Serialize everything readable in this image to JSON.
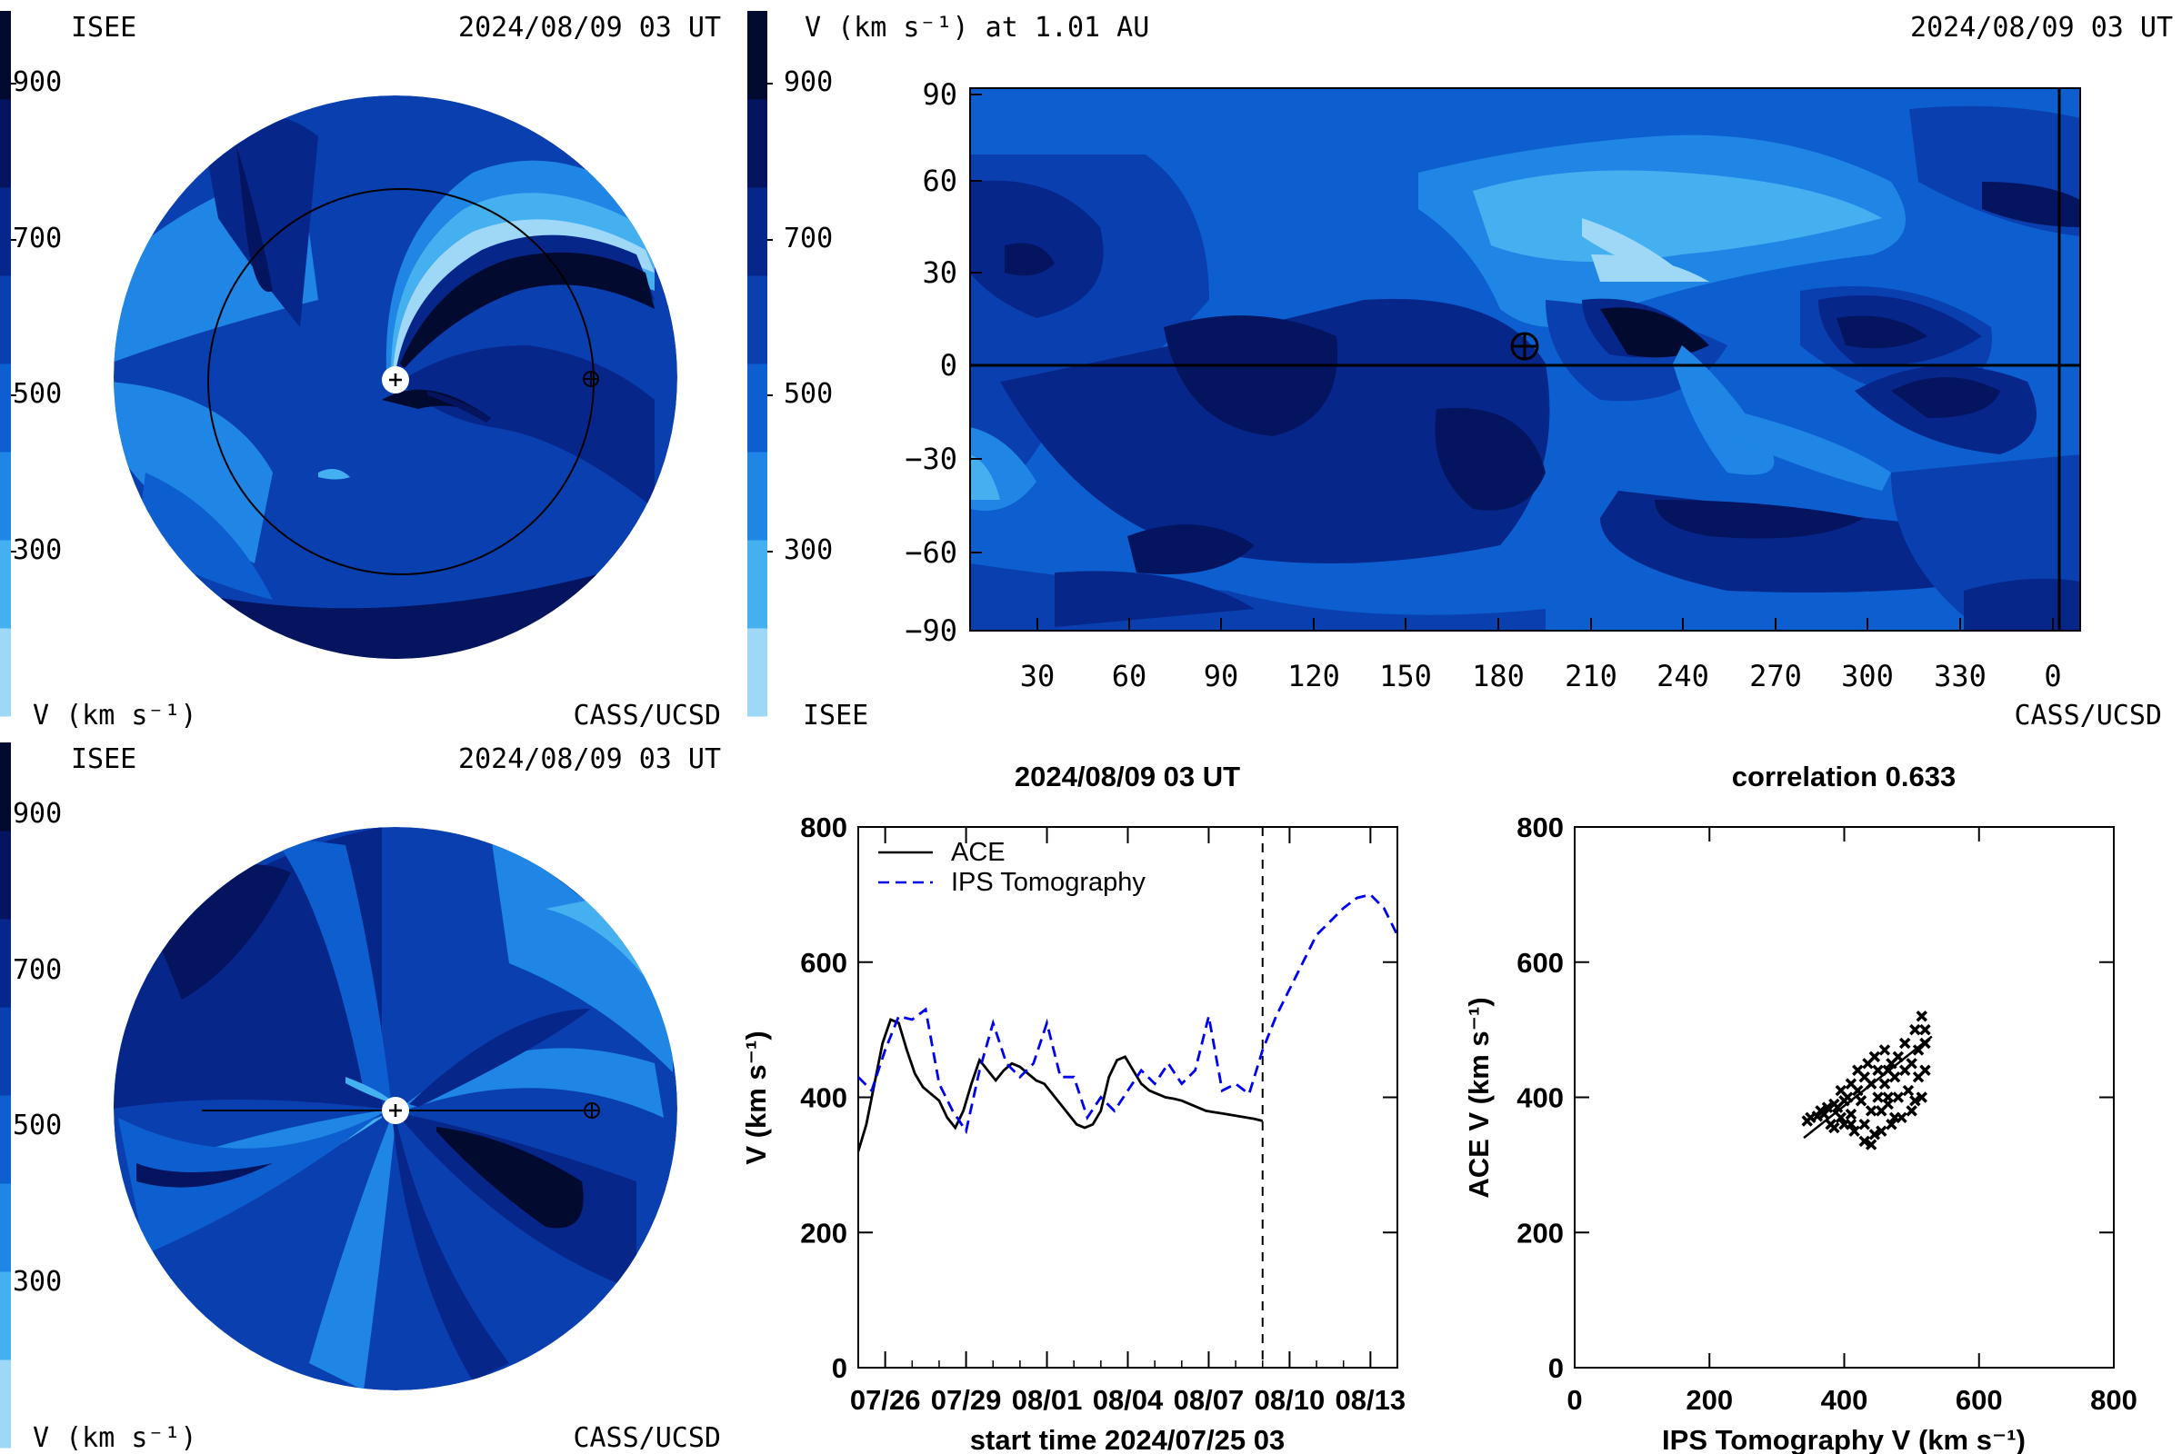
{
  "colorbar_levels": [
    "#9fd8f7",
    "#44b0f0",
    "#1f86e6",
    "#0d5fd0",
    "#0a3fb0",
    "#07268a",
    "#05145e",
    "#020a30"
  ],
  "tl": {
    "org_left": "ISEE",
    "time": "2024/08/09 03 UT",
    "org_right": "CASS/UCSD",
    "cbar_ticks": [
      "900",
      "700",
      "500",
      "300"
    ],
    "cbar_unit": "V (km s⁻¹)"
  },
  "bl": {
    "org_left": "ISEE",
    "time": "2024/08/09 03 UT",
    "org_right": "CASS/UCSD",
    "cbar_ticks": [
      "900",
      "700",
      "500",
      "300"
    ],
    "cbar_unit": "V (km s⁻¹)"
  },
  "tr": {
    "title": "V (km s⁻¹) at 1.01 AU",
    "time": "2024/08/09 03 UT",
    "org_left": "ISEE",
    "org_right": "CASS/UCSD",
    "cbar_ticks": [
      "900",
      "700",
      "500",
      "300"
    ],
    "lat_ticks": [
      "90",
      "60",
      "30",
      "0",
      "−30",
      "−60",
      "−90"
    ],
    "lon_ticks": [
      "30",
      "60",
      "90",
      "120",
      "150",
      "180",
      "210",
      "240",
      "270",
      "300",
      "330",
      "0"
    ]
  },
  "chart_data": [
    {
      "type": "line",
      "title": "2024/08/09 03 UT",
      "xlabel": "start time 2024/07/25 03",
      "ylabel": "V (km s⁻¹)",
      "ylim": [
        0,
        800
      ],
      "xlim_days": [
        0,
        20
      ],
      "x_tick_labels": [
        "07/26",
        "07/29",
        "08/01",
        "08/04",
        "08/07",
        "08/10",
        "08/13"
      ],
      "y_tick_labels": [
        "0",
        "200",
        "400",
        "600",
        "800"
      ],
      "legend_position": "top-left",
      "vline_day": 15.0,
      "series": [
        {
          "name": "ACE",
          "style": "solid",
          "color": "#000000",
          "x": [
            0,
            0.3,
            0.6,
            0.9,
            1.2,
            1.5,
            1.8,
            2.1,
            2.4,
            2.7,
            3.0,
            3.3,
            3.6,
            3.9,
            4.2,
            4.5,
            4.8,
            5.1,
            5.4,
            5.7,
            6.0,
            6.3,
            6.6,
            6.9,
            7.2,
            7.5,
            7.8,
            8.1,
            8.4,
            8.7,
            9.0,
            9.3,
            9.6,
            9.9,
            10.2,
            10.5,
            10.8,
            11.1,
            11.4,
            11.7,
            12.0,
            12.3,
            12.6,
            12.9,
            13.2,
            13.5,
            13.8,
            14.1,
            14.4,
            14.7,
            15.0
          ],
          "y": [
            320,
            360,
            420,
            480,
            515,
            510,
            470,
            435,
            415,
            405,
            395,
            370,
            355,
            380,
            420,
            455,
            440,
            425,
            440,
            450,
            445,
            435,
            425,
            420,
            405,
            390,
            375,
            360,
            355,
            360,
            380,
            430,
            455,
            460,
            440,
            420,
            410,
            405,
            400,
            398,
            395,
            390,
            385,
            380,
            378,
            376,
            374,
            372,
            370,
            368,
            365
          ]
        },
        {
          "name": "IPS Tomography",
          "style": "dashed",
          "color": "#0000ee",
          "x": [
            0,
            0.5,
            1.0,
            1.5,
            2.0,
            2.5,
            3.0,
            3.5,
            4.0,
            4.5,
            5.0,
            5.5,
            6.0,
            6.5,
            7.0,
            7.5,
            8.0,
            8.5,
            9.0,
            9.5,
            10.0,
            10.5,
            11.0,
            11.5,
            12.0,
            12.5,
            13.0,
            13.5,
            14.0,
            14.5,
            15.0,
            15.5,
            16.0,
            16.5,
            17.0,
            17.5,
            18.0,
            18.5,
            19.0,
            19.5,
            20.0
          ],
          "y": [
            430,
            410,
            470,
            520,
            515,
            530,
            420,
            380,
            350,
            440,
            510,
            450,
            430,
            450,
            510,
            430,
            430,
            370,
            400,
            380,
            410,
            440,
            420,
            450,
            420,
            440,
            520,
            410,
            420,
            405,
            470,
            520,
            560,
            600,
            640,
            660,
            680,
            695,
            700,
            680,
            640
          ]
        }
      ]
    },
    {
      "type": "scatter",
      "title": "correlation 0.633",
      "xlabel": "IPS Tomography V (km s⁻¹)",
      "ylabel": "ACE V (km s⁻¹)",
      "xlim": [
        0,
        800
      ],
      "ylim": [
        0,
        800
      ],
      "x_tick_labels": [
        "0",
        "200",
        "400",
        "600",
        "800"
      ],
      "y_tick_labels": [
        "0",
        "200",
        "400",
        "600",
        "800"
      ],
      "points": [
        [
          345,
          365
        ],
        [
          350,
          370
        ],
        [
          360,
          372
        ],
        [
          365,
          380
        ],
        [
          370,
          375
        ],
        [
          380,
          360
        ],
        [
          385,
          390
        ],
        [
          390,
          385
        ],
        [
          395,
          370
        ],
        [
          400,
          395
        ],
        [
          400,
          360
        ],
        [
          405,
          400
        ],
        [
          410,
          375
        ],
        [
          410,
          420
        ],
        [
          415,
          350
        ],
        [
          420,
          410
        ],
        [
          420,
          440
        ],
        [
          425,
          395
        ],
        [
          430,
          360
        ],
        [
          430,
          430
        ],
        [
          435,
          450
        ],
        [
          440,
          380
        ],
        [
          440,
          420
        ],
        [
          445,
          345
        ],
        [
          445,
          460
        ],
        [
          450,
          400
        ],
        [
          450,
          440
        ],
        [
          455,
          380
        ],
        [
          460,
          470
        ],
        [
          460,
          420
        ],
        [
          465,
          390
        ],
        [
          470,
          450
        ],
        [
          470,
          360
        ],
        [
          475,
          430
        ],
        [
          480,
          400
        ],
        [
          480,
          460
        ],
        [
          485,
          370
        ],
        [
          490,
          440
        ],
        [
          490,
          480
        ],
        [
          495,
          410
        ],
        [
          500,
          450
        ],
        [
          500,
          380
        ],
        [
          505,
          500
        ],
        [
          510,
          430
        ],
        [
          510,
          470
        ],
        [
          515,
          520
        ],
        [
          515,
          400
        ],
        [
          520,
          440
        ],
        [
          520,
          480
        ],
        [
          430,
          335
        ],
        [
          440,
          330
        ],
        [
          410,
          360
        ],
        [
          395,
          410
        ],
        [
          455,
          350
        ],
        [
          465,
          440
        ],
        [
          475,
          370
        ],
        [
          505,
          395
        ],
        [
          385,
          355
        ],
        [
          375,
          385
        ],
        [
          465,
          400
        ],
        [
          520,
          500
        ]
      ],
      "fit_line": [
        [
          340,
          340
        ],
        [
          530,
          490
        ]
      ]
    }
  ]
}
